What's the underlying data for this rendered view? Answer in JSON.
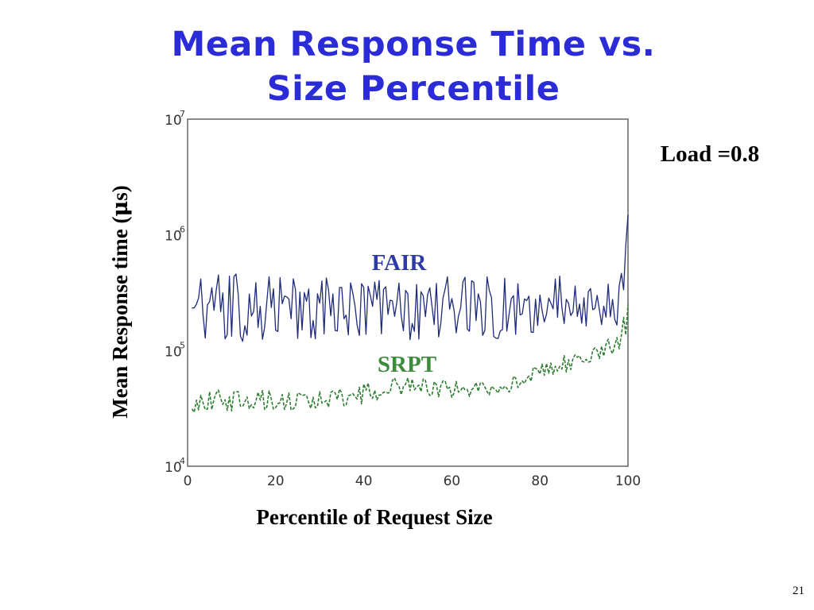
{
  "slide": {
    "title_line1": "Mean Response Time vs.",
    "title_line2": "Size Percentile",
    "page_number": "21",
    "title_color": "#2B2BD8"
  },
  "chart_data": {
    "type": "line",
    "title": "Mean Response Time vs. Size Percentile",
    "xlabel": "Percentile of Request Size",
    "ylabel_prefix": "Mean Response time (",
    "ylabel_mu": "μ",
    "ylabel_suffix": "s)",
    "xlim": [
      0,
      100
    ],
    "ylim": [
      10000,
      10000000
    ],
    "yscale": "log",
    "xticks": [
      "0",
      "20",
      "40",
      "60",
      "80",
      "100"
    ],
    "yticks": [
      {
        "base": "10",
        "exp": "4"
      },
      {
        "base": "10",
        "exp": "5"
      },
      {
        "base": "10",
        "exp": "6"
      },
      {
        "base": "10",
        "exp": "7"
      }
    ],
    "annotation": "Load =0.8",
    "legend_placement": "inline",
    "series": [
      {
        "name": "FAIR",
        "color": "#1E2A7A",
        "label_color": "#2D3AA8",
        "style": "solid",
        "x": [
          1,
          5,
          10,
          15,
          20,
          25,
          30,
          35,
          40,
          45,
          50,
          55,
          60,
          65,
          70,
          75,
          80,
          85,
          90,
          95,
          98,
          99,
          100
        ],
        "values": [
          240000,
          230000,
          250000,
          245000,
          240000,
          235000,
          250000,
          240000,
          230000,
          235000,
          230000,
          220000,
          230000,
          230000,
          235000,
          240000,
          255000,
          260000,
          255000,
          265000,
          270000,
          400000,
          1200000
        ],
        "min_envelope": [
          120000,
          130000,
          115000,
          125000,
          110000,
          120000,
          118000,
          122000,
          115000,
          120000,
          100000,
          115000,
          115000,
          120000,
          125000,
          130000,
          140000,
          145000,
          140000,
          150000,
          150000,
          200000,
          400000
        ],
        "max_envelope": [
          460000,
          480000,
          460000,
          470000,
          450000,
          460000,
          470000,
          455000,
          450000,
          445000,
          440000,
          430000,
          435000,
          440000,
          450000,
          460000,
          480000,
          490000,
          480000,
          500000,
          500000,
          900000,
          1500000
        ]
      },
      {
        "name": "SRPT",
        "color": "#2E7D32",
        "label_color": "#3C8C3C",
        "style": "dashed",
        "x": [
          1,
          5,
          10,
          15,
          20,
          25,
          30,
          35,
          40,
          45,
          50,
          55,
          60,
          65,
          70,
          75,
          80,
          85,
          90,
          95,
          98,
          99,
          100
        ],
        "values": [
          36000,
          37000,
          35000,
          36500,
          37000,
          36000,
          37000,
          38000,
          40000,
          47000,
          50000,
          46000,
          44000,
          46000,
          48000,
          52000,
          65000,
          75000,
          85000,
          105000,
          120000,
          150000,
          230000
        ],
        "min_envelope": [
          29000,
          30000,
          29000,
          30000,
          31000,
          30000,
          31000,
          32000,
          33000,
          40000,
          42000,
          40000,
          38000,
          40000,
          42000,
          45000,
          55000,
          63000,
          72000,
          88000,
          100000,
          120000,
          150000
        ],
        "max_envelope": [
          45000,
          47000,
          44000,
          46000,
          46000,
          45000,
          46000,
          47000,
          52000,
          58000,
          62000,
          56000,
          54000,
          56000,
          58000,
          62000,
          80000,
          90000,
          100000,
          125000,
          145000,
          200000,
          600000
        ]
      }
    ]
  }
}
